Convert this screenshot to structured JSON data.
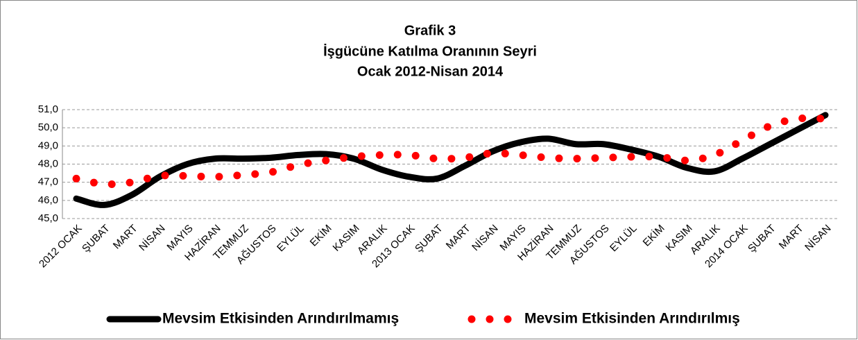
{
  "chart_data": {
    "type": "line",
    "title": [
      "Grafik 3",
      "İşgücüne Katılma Oranının Seyri",
      "Ocak 2012-Nisan 2014"
    ],
    "categories": [
      "2012 OCAK",
      "ŞUBAT",
      "MART",
      "NİSAN",
      "MAYIS",
      "HAZİRAN",
      "TEMMUZ",
      "AĞUSTOS",
      "EYLÜL",
      "EKİM",
      "KASIM",
      "ARALIK",
      "2013 OCAK",
      "ŞUBAT",
      "MART",
      "NİSAN",
      "MAYIS",
      "HAZİRAN",
      "TEMMUZ",
      "AĞUSTOS",
      "EYLÜL",
      "EKİM",
      "KASIM",
      "ARALIK",
      "2014 OCAK",
      "ŞUBAT",
      "MART",
      "NİSAN"
    ],
    "series": [
      {
        "name": "Mevsim Etkisinden Arındırılmamış",
        "color": "#000000",
        "style": "solid",
        "values": [
          46.1,
          45.75,
          46.3,
          47.3,
          48.0,
          48.3,
          48.3,
          48.35,
          48.5,
          48.55,
          48.3,
          47.7,
          47.3,
          47.2,
          47.9,
          48.7,
          49.2,
          49.4,
          49.1,
          49.1,
          48.8,
          48.4,
          47.8,
          47.6,
          48.3,
          49.1,
          49.9,
          50.7
        ]
      },
      {
        "name": "Mevsim Etkisinden Arındırılmış",
        "color": "#ff0000",
        "style": "dotted",
        "values": [
          47.2,
          46.9,
          47.0,
          47.35,
          47.35,
          47.3,
          47.4,
          47.55,
          47.95,
          48.2,
          48.4,
          48.5,
          48.5,
          48.3,
          48.35,
          48.6,
          48.5,
          48.35,
          48.3,
          48.35,
          48.4,
          48.4,
          48.2,
          48.5,
          49.3,
          50.1,
          50.5,
          50.5
        ]
      }
    ],
    "ylim": [
      45,
      51
    ],
    "yticks": [
      {
        "value": 45,
        "label": "45,0"
      },
      {
        "value": 46,
        "label": "46,0"
      },
      {
        "value": 47,
        "label": "47,0"
      },
      {
        "value": 48,
        "label": "48,0"
      },
      {
        "value": 49,
        "label": "49,0"
      },
      {
        "value": 50,
        "label": "50,0"
      },
      {
        "value": 51,
        "label": "51,0"
      }
    ],
    "grid": true,
    "legend": "bottom"
  }
}
